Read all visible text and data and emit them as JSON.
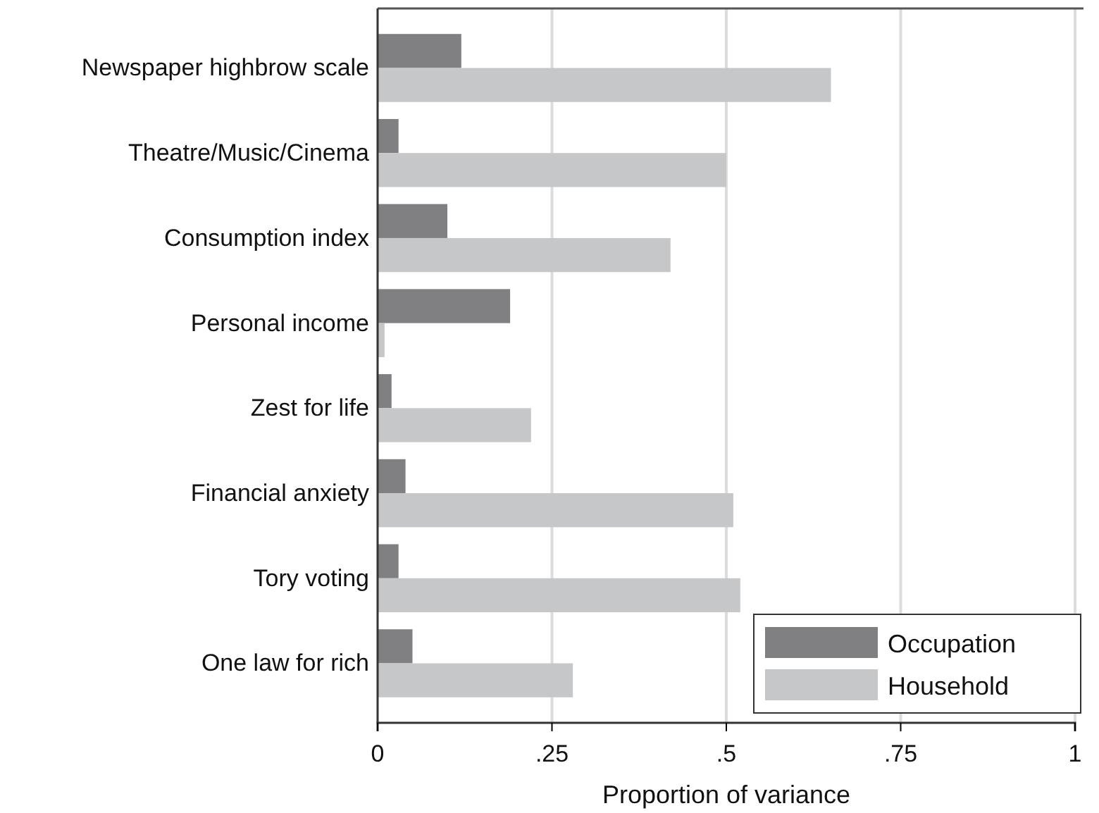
{
  "chart_data": {
    "type": "bar",
    "orientation": "horizontal",
    "xlabel": "Proportion of variance",
    "categories": [
      "Newspaper highbrow scale",
      "Theatre/Music/Cinema",
      "Consumption index",
      "Personal income",
      "Zest for life",
      "Financial anxiety",
      "Tory voting",
      "One law for rich"
    ],
    "series": [
      {
        "name": "Occupation",
        "color": "#808083",
        "values": [
          0.12,
          0.03,
          0.1,
          0.19,
          0.02,
          0.04,
          0.03,
          0.05
        ]
      },
      {
        "name": "Household",
        "color": "#c6c7c8",
        "values": [
          0.65,
          0.5,
          0.42,
          0.01,
          0.22,
          0.51,
          0.52,
          0.28
        ]
      }
    ],
    "xlim": [
      0,
      1
    ],
    "xticks": [
      0,
      {
        "value": 0.25,
        "label": ".25"
      },
      {
        "value": 0.5,
        "label": ".5"
      },
      {
        "value": 0.75,
        "label": ".75"
      },
      1
    ],
    "grid": "x",
    "legend": "bottom right"
  }
}
